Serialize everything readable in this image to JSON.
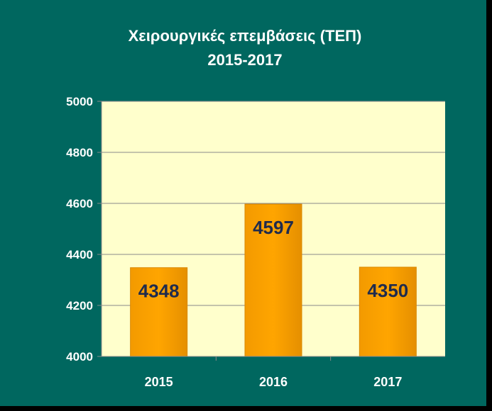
{
  "chart_data": {
    "type": "bar",
    "title": "Χειρουργικές επεμβάσεις (ΤΕΠ)",
    "subtitle": "2015-2017",
    "categories": [
      "2015",
      "2016",
      "2017"
    ],
    "values": [
      4348,
      4597,
      4350
    ],
    "ylim": [
      4000,
      5000
    ],
    "yticks": [
      4000,
      4200,
      4400,
      4600,
      4800,
      5000
    ],
    "grid": true,
    "legend": "none"
  },
  "colors": {
    "background": "#00675f",
    "plot_area": "#ffffcc",
    "bar": "#ffa500",
    "bar_label": "#1f2b4d",
    "gridline": "#8a8a8a"
  }
}
